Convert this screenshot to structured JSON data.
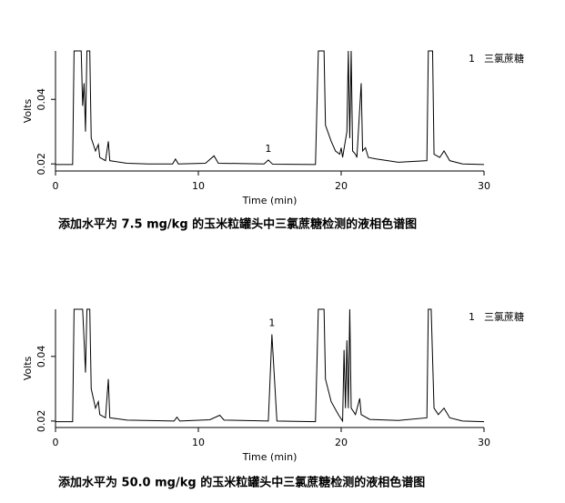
{
  "chart_data": [
    {
      "type": "line",
      "xlabel": "Time (min)",
      "ylabel": "Volts",
      "caption": "添加水平为 7.5 mg/kg 的玉米粒罐头中三氯蔗糖检测的液相色谱图",
      "legend": {
        "number": "1",
        "label": "三氯蔗糖"
      },
      "annotation": {
        "text": "1",
        "x": 14.9,
        "y": 0.0212
      },
      "xlim": [
        0,
        30
      ],
      "xticks": [
        0,
        10,
        20,
        30
      ],
      "ylim": [
        0.0178,
        0.055
      ],
      "yticks": [
        0.02,
        0.04
      ],
      "x": [
        0,
        1.2,
        1.3,
        1.8,
        1.9,
        2.0,
        2.1,
        2.2,
        2.4,
        2.5,
        2.8,
        3.0,
        3.1,
        3.5,
        3.7,
        3.8,
        5,
        6.5,
        8.2,
        8.4,
        8.6,
        10.5,
        11.1,
        11.4,
        14.6,
        14.9,
        15.2,
        18.2,
        18.4,
        18.8,
        18.9,
        19.3,
        19.6,
        19.9,
        20.0,
        20.1,
        20.4,
        20.5,
        20.6,
        20.7,
        20.8,
        21.0,
        21.1,
        21.4,
        21.5,
        21.7,
        21.9,
        22.5,
        24,
        26.0,
        26.1,
        26.4,
        26.5,
        26.9,
        27.2,
        27.6,
        28.5,
        30
      ],
      "series": [
        {
          "color": "#000000",
          "values": [
            0.0198,
            0.0198,
            0.055,
            0.055,
            0.038,
            0.045,
            0.03,
            0.055,
            0.055,
            0.028,
            0.024,
            0.026,
            0.022,
            0.021,
            0.027,
            0.021,
            0.0202,
            0.02,
            0.02,
            0.0215,
            0.02,
            0.0202,
            0.0225,
            0.0202,
            0.02,
            0.0212,
            0.0199,
            0.0198,
            0.055,
            0.055,
            0.032,
            0.027,
            0.024,
            0.023,
            0.025,
            0.022,
            0.03,
            0.055,
            0.028,
            0.055,
            0.024,
            0.023,
            0.022,
            0.045,
            0.024,
            0.025,
            0.022,
            0.0215,
            0.0205,
            0.021,
            0.055,
            0.055,
            0.023,
            0.022,
            0.024,
            0.021,
            0.02,
            0.0198
          ]
        }
      ]
    },
    {
      "type": "line",
      "xlabel": "Time (min)",
      "ylabel": "Volts",
      "caption": "添加水平为 50.0 mg/kg 的玉米粒罐头中三氯蔗糖检测的液相色谱图",
      "legend": {
        "number": "1",
        "label": "三氯蔗糖"
      },
      "annotation": {
        "text": "1",
        "x": 15.15,
        "y": 0.0468
      },
      "xlim": [
        0,
        30
      ],
      "xticks": [
        0,
        10,
        20,
        30
      ],
      "ylim": [
        0.018,
        0.0546
      ],
      "yticks": [
        0.02,
        0.04
      ],
      "x": [
        0,
        1.2,
        1.3,
        1.9,
        2.0,
        2.1,
        2.2,
        2.4,
        2.5,
        2.8,
        3.0,
        3.1,
        3.5,
        3.7,
        3.8,
        5,
        8.3,
        8.5,
        8.7,
        10.8,
        11.5,
        11.8,
        14.9,
        15.15,
        15.5,
        18.2,
        18.4,
        18.8,
        18.9,
        19.3,
        19.8,
        20.1,
        20.2,
        20.3,
        20.4,
        20.5,
        20.6,
        20.7,
        21.0,
        21.3,
        21.4,
        22,
        24,
        26.0,
        26.1,
        26.3,
        26.5,
        26.8,
        27.2,
        27.6,
        28.5,
        30
      ],
      "series": [
        {
          "color": "#000000",
          "values": [
            0.0198,
            0.0198,
            0.0546,
            0.0546,
            0.045,
            0.035,
            0.0546,
            0.0546,
            0.03,
            0.024,
            0.026,
            0.022,
            0.021,
            0.033,
            0.021,
            0.0203,
            0.02,
            0.0212,
            0.02,
            0.0204,
            0.0218,
            0.0203,
            0.02,
            0.0468,
            0.02,
            0.0198,
            0.0546,
            0.0546,
            0.033,
            0.026,
            0.022,
            0.02,
            0.042,
            0.024,
            0.045,
            0.024,
            0.0546,
            0.024,
            0.022,
            0.027,
            0.022,
            0.0205,
            0.0202,
            0.021,
            0.0546,
            0.0546,
            0.024,
            0.022,
            0.024,
            0.021,
            0.02,
            0.0198
          ]
        }
      ]
    }
  ]
}
